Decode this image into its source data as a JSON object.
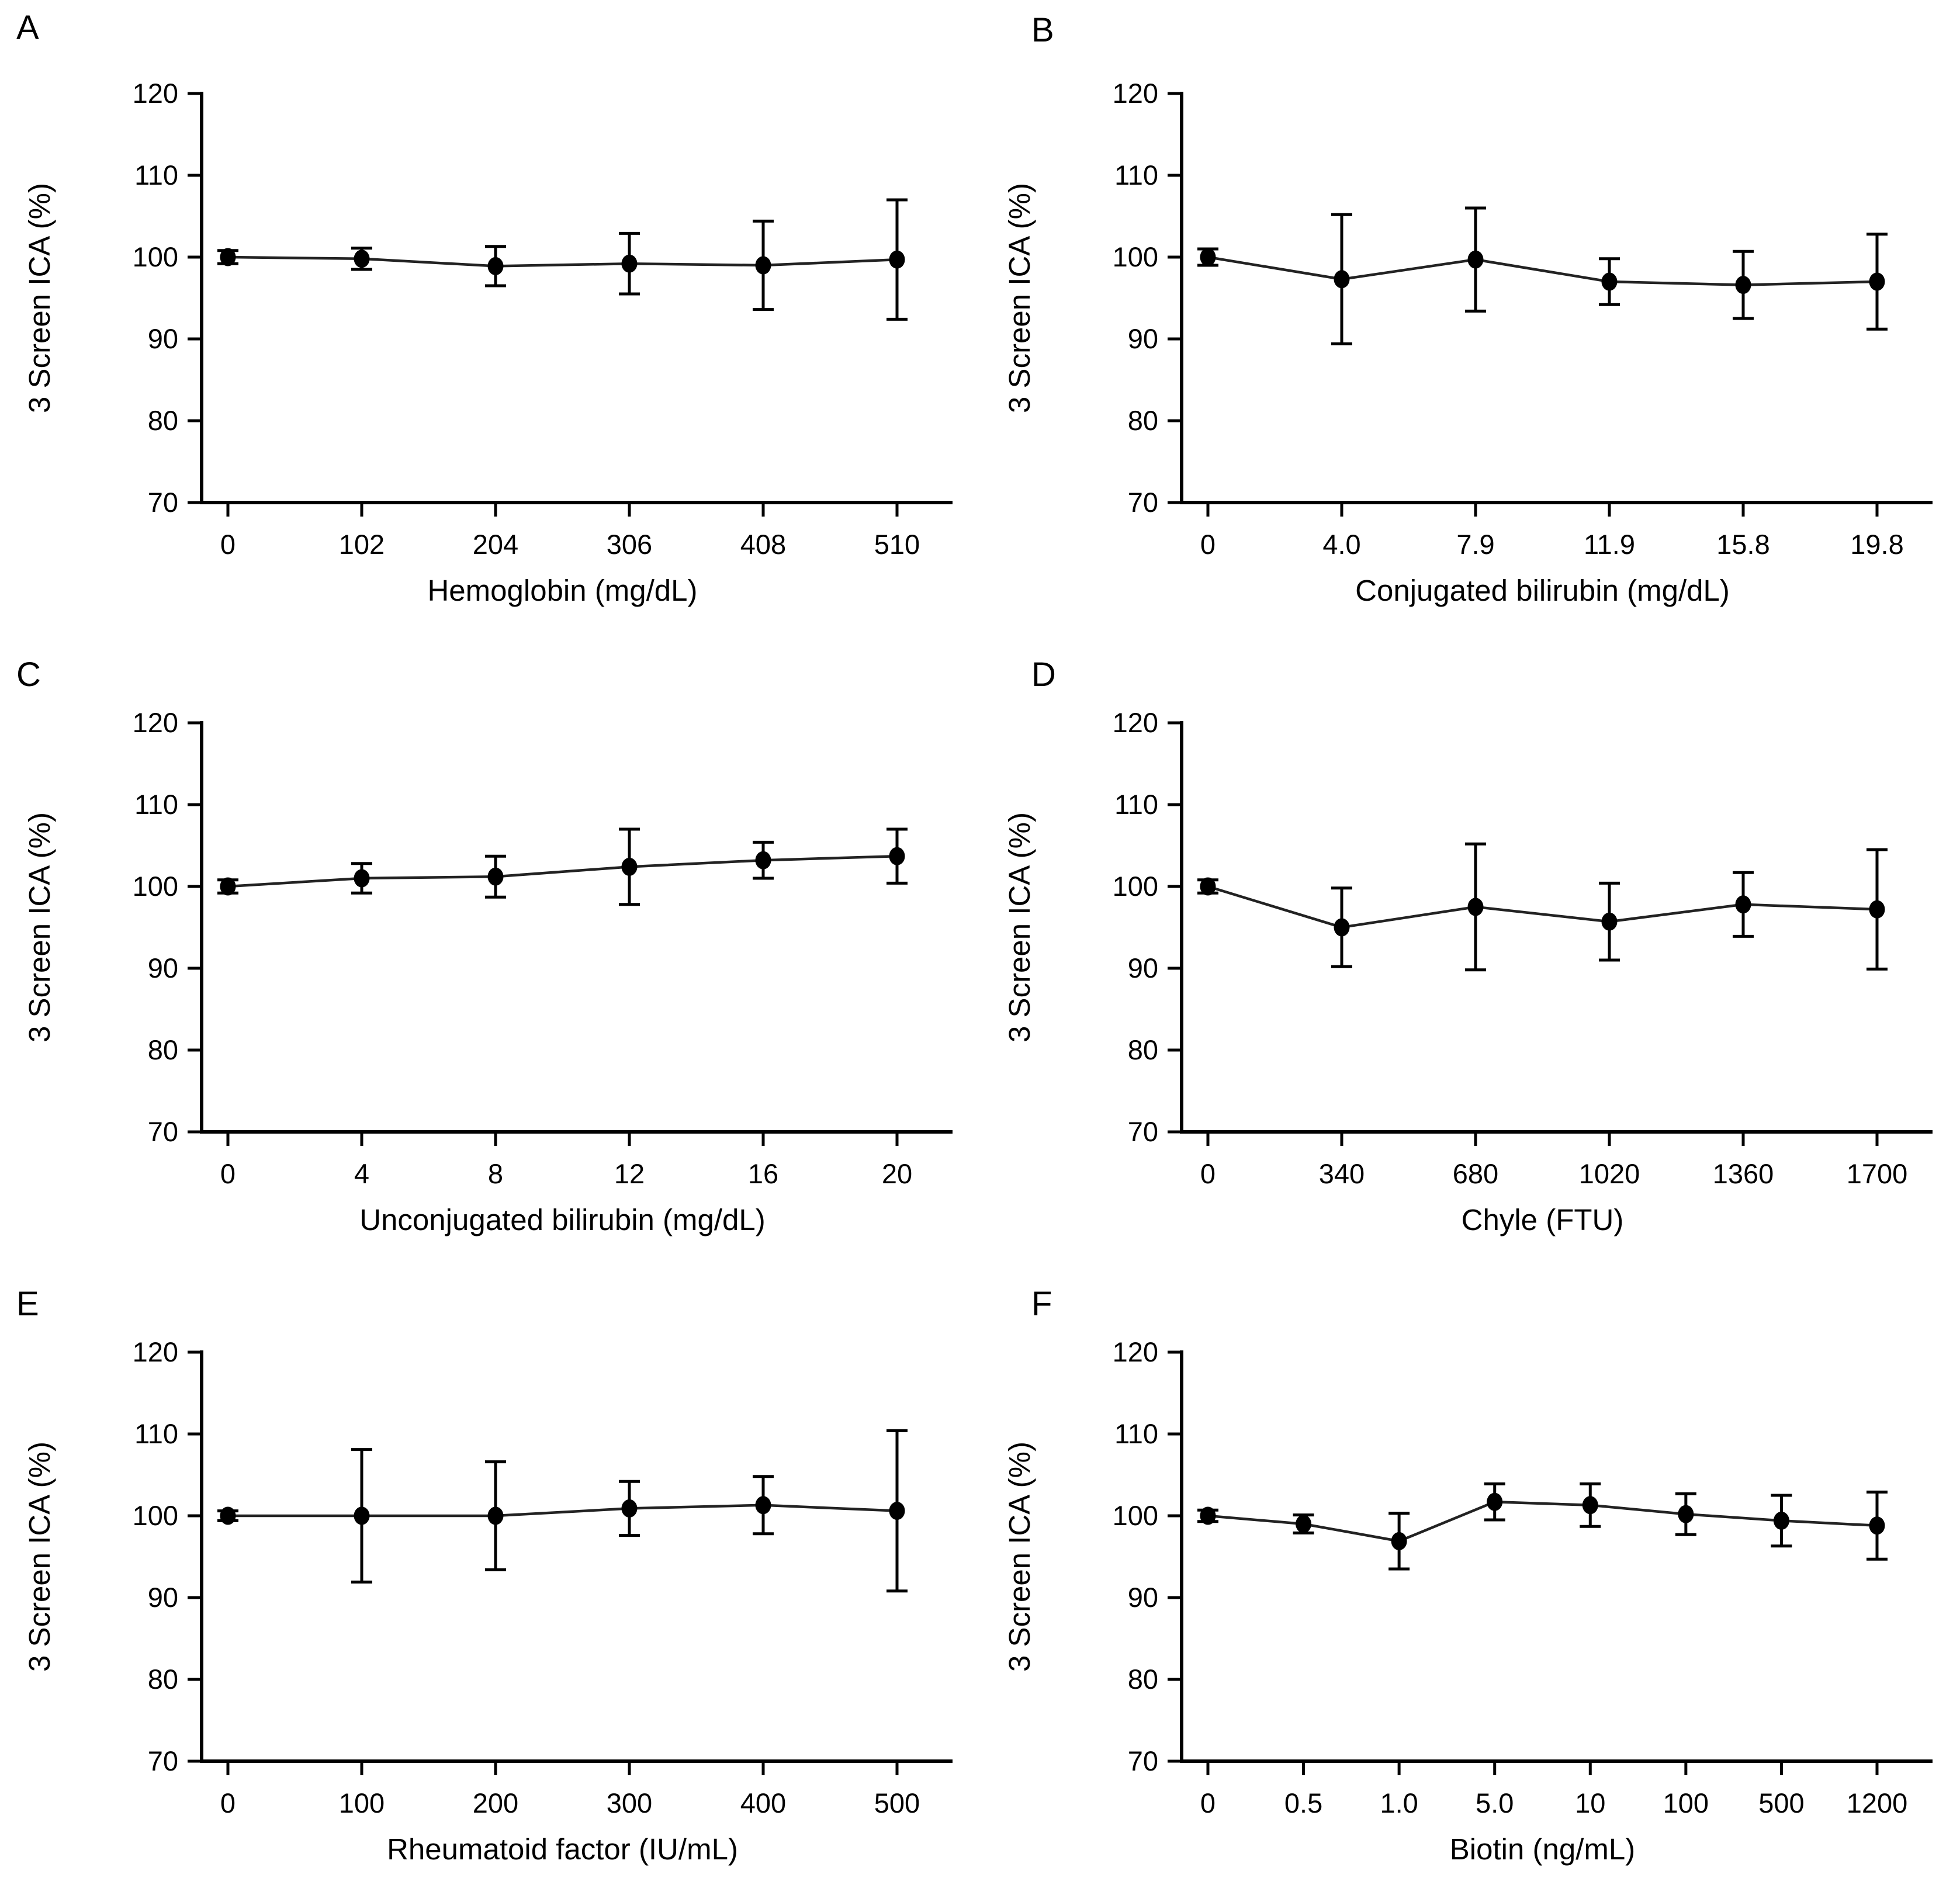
{
  "figure": {
    "background": "#ffffff",
    "shared_y_axis_label": "3 Screen ICA (%)",
    "style": {
      "axis_color": "#000000",
      "series_line_color": "#222222",
      "marker_color": "#000000",
      "error_bar_color": "#000000",
      "text_color": "#000000",
      "background": "#ffffff"
    }
  },
  "chart_data": [
    {
      "type": "line",
      "letter": "A",
      "xlabel": "Hemoglobin (mg/dL)",
      "ylabel": "3 Screen ICA (%)",
      "categories": [
        "0",
        "102",
        "204",
        "306",
        "408",
        "510"
      ],
      "values": [
        100,
        99.8,
        98.9,
        99.2,
        99.0,
        99.7
      ],
      "errors": [
        0.8,
        1.3,
        2.4,
        3.7,
        5.4,
        7.3
      ],
      "ylim": [
        70,
        120
      ],
      "yticks": [
        70,
        80,
        90,
        100,
        110,
        120
      ],
      "marker": "filled-circle",
      "error_bars": true,
      "grid": false,
      "legend": "none"
    },
    {
      "type": "line",
      "letter": "B",
      "xlabel": "Conjugated bilirubin (mg/dL)",
      "ylabel": "3 Screen ICA (%)",
      "categories": [
        "0",
        "4.0",
        "7.9",
        "11.9",
        "15.8",
        "19.8"
      ],
      "values": [
        100,
        97.3,
        99.7,
        97.0,
        96.6,
        97.0
      ],
      "errors": [
        1.0,
        7.9,
        6.3,
        2.8,
        4.1,
        5.8
      ],
      "ylim": [
        70,
        120
      ],
      "yticks": [
        70,
        80,
        90,
        100,
        110,
        120
      ],
      "marker": "filled-circle",
      "error_bars": true,
      "grid": false,
      "legend": "none"
    },
    {
      "type": "line",
      "letter": "C",
      "xlabel": "Unconjugated bilirubin (mg/dL)",
      "ylabel": "3 Screen ICA (%)",
      "categories": [
        "0",
        "4",
        "8",
        "12",
        "16",
        "20"
      ],
      "values": [
        100,
        101.0,
        101.2,
        102.4,
        103.2,
        103.7
      ],
      "errors": [
        0.8,
        1.8,
        2.5,
        4.6,
        2.2,
        3.3
      ],
      "ylim": [
        70,
        120
      ],
      "yticks": [
        70,
        80,
        90,
        100,
        110,
        120
      ],
      "marker": "filled-circle",
      "error_bars": true,
      "grid": false,
      "legend": "none"
    },
    {
      "type": "line",
      "letter": "D",
      "xlabel": "Chyle (FTU)",
      "ylabel": "3 Screen ICA (%)",
      "categories": [
        "0",
        "340",
        "680",
        "1020",
        "1360",
        "1700"
      ],
      "values": [
        100,
        95.0,
        97.5,
        95.7,
        97.8,
        97.2
      ],
      "errors": [
        0.8,
        4.8,
        7.7,
        4.7,
        3.9,
        7.3
      ],
      "ylim": [
        70,
        120
      ],
      "yticks": [
        70,
        80,
        90,
        100,
        110,
        120
      ],
      "marker": "filled-circle",
      "error_bars": true,
      "grid": false,
      "legend": "none"
    },
    {
      "type": "line",
      "letter": "E",
      "xlabel": "Rheumatoid factor (IU/mL)",
      "ylabel": "3 Screen ICA (%)",
      "categories": [
        "0",
        "100",
        "200",
        "300",
        "400",
        "500"
      ],
      "values": [
        100,
        100,
        100,
        100.9,
        101.3,
        100.6
      ],
      "errors": [
        0.6,
        8.1,
        6.6,
        3.3,
        3.5,
        9.8
      ],
      "ylim": [
        70,
        120
      ],
      "yticks": [
        70,
        80,
        90,
        100,
        110,
        120
      ],
      "marker": "filled-circle",
      "error_bars": true,
      "grid": false,
      "legend": "none"
    },
    {
      "type": "line",
      "letter": "F",
      "xlabel": "Biotin (ng/mL)",
      "ylabel": "3 Screen ICA (%)",
      "categories": [
        "0",
        "0.5",
        "1.0",
        "5.0",
        "10",
        "100",
        "500",
        "1200"
      ],
      "values": [
        100,
        99.0,
        96.9,
        101.7,
        101.3,
        100.2,
        99.4,
        98.8
      ],
      "errors": [
        0.7,
        1.1,
        3.4,
        2.2,
        2.6,
        2.5,
        3.1,
        4.1
      ],
      "ylim": [
        70,
        120
      ],
      "yticks": [
        70,
        80,
        90,
        100,
        110,
        120
      ],
      "marker": "filled-circle",
      "error_bars": true,
      "grid": false,
      "legend": "none"
    }
  ]
}
